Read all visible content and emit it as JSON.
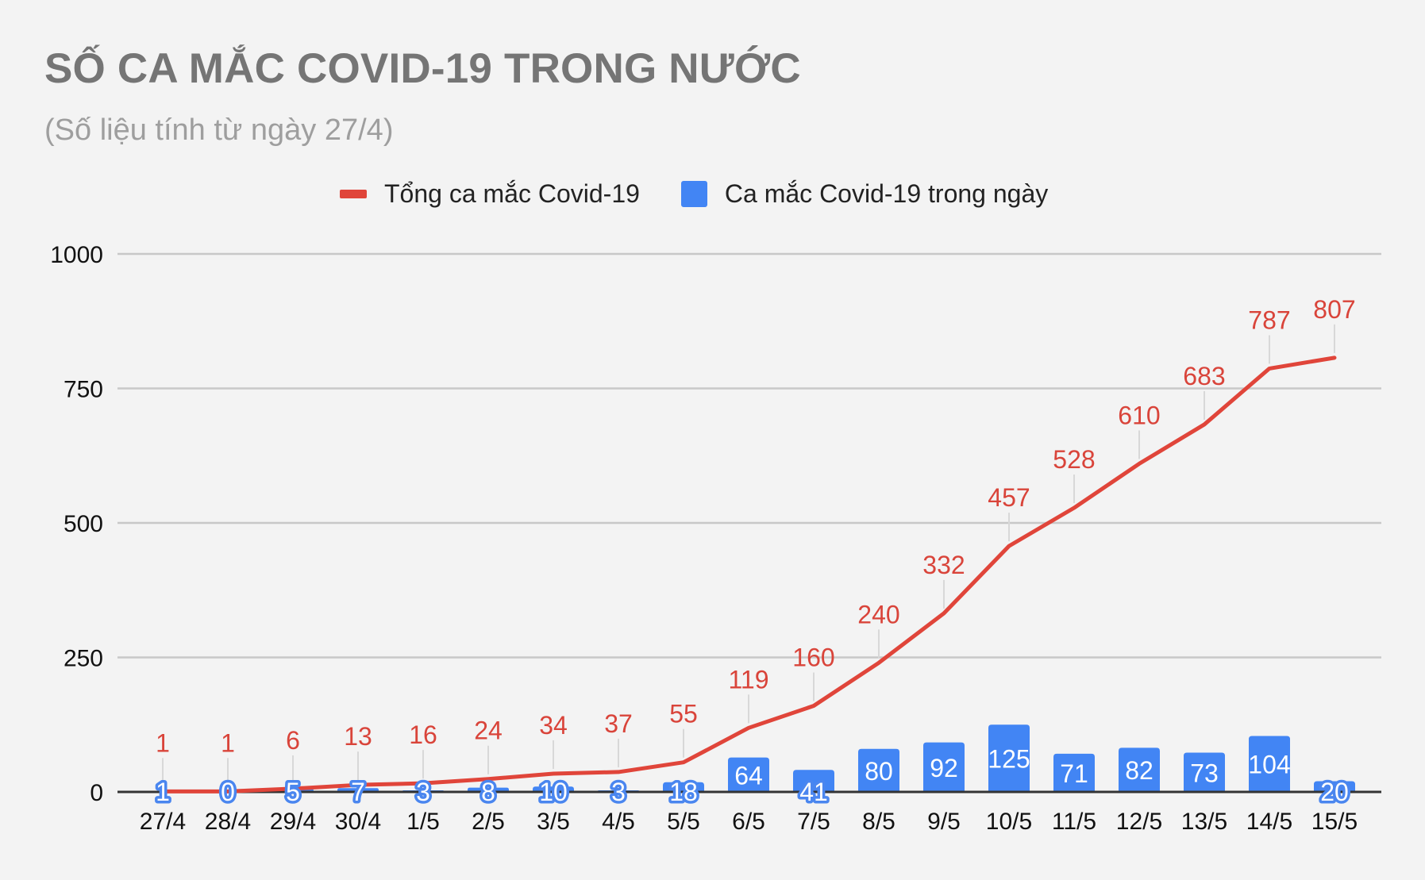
{
  "title": "SỐ CA MẮC COVID-19 TRONG NƯỚC",
  "subtitle": "(Số liệu tính từ ngày 27/4)",
  "legend": {
    "line_label": "Tổng ca mắc Covid-19",
    "bar_label": "Ca mắc Covid-19 trong ngày"
  },
  "colors": {
    "line": "#e0453a",
    "line_label": "#d9443a",
    "bar": "#4285f4",
    "grid": "#c8c8c8",
    "axis": "#333333",
    "background": "#f3f3f3"
  },
  "chart_data": {
    "type": "bar+line",
    "title": "SỐ CA MẮC COVID-19 TRONG NƯỚC",
    "subtitle": "(Số liệu tính từ ngày 27/4)",
    "xlabel": "",
    "ylabel": "",
    "ylim": [
      0,
      1000
    ],
    "yticks": [
      0,
      250,
      500,
      750,
      1000
    ],
    "grid": true,
    "legend_position": "top",
    "categories": [
      "27/4",
      "28/4",
      "29/4",
      "30/4",
      "1/5",
      "2/5",
      "3/5",
      "4/5",
      "5/5",
      "6/5",
      "7/5",
      "8/5",
      "9/5",
      "10/5",
      "11/5",
      "12/5",
      "13/5",
      "14/5",
      "15/5"
    ],
    "series": [
      {
        "name": "Tổng ca mắc Covid-19",
        "type": "line",
        "values": [
          1,
          1,
          6,
          13,
          16,
          24,
          34,
          37,
          55,
          119,
          160,
          240,
          332,
          457,
          528,
          610,
          683,
          787,
          807
        ]
      },
      {
        "name": "Ca mắc Covid-19 trong ngày",
        "type": "bar",
        "values": [
          1,
          0,
          5,
          7,
          3,
          8,
          10,
          3,
          18,
          64,
          41,
          80,
          92,
          125,
          71,
          82,
          73,
          104,
          20
        ]
      }
    ]
  }
}
